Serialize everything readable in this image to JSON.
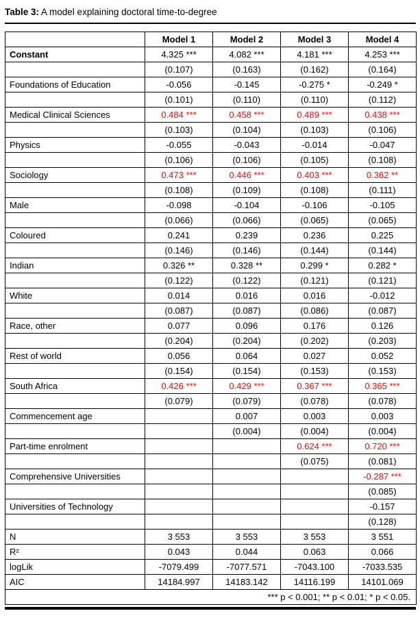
{
  "title": {
    "label": "Table 3:",
    "text": "A model explaining doctoral time-to-degree"
  },
  "colors": {
    "significant": "#ff0000",
    "text": "#000000",
    "border": "#000000"
  },
  "table": {
    "columns": [
      "",
      "Model 1",
      "Model 2",
      "Model 3",
      "Model 4"
    ],
    "variables": [
      {
        "label": "Constant",
        "bold": true,
        "coef": [
          "4.325 ***",
          "4.082 ***",
          "4.181 ***",
          "4.253 ***"
        ],
        "se": [
          "(0.107)",
          "(0.163)",
          "(0.162)",
          "(0.164)"
        ],
        "red": [
          false,
          false,
          false,
          false
        ]
      },
      {
        "label": "Foundations of Education",
        "bold": false,
        "coef": [
          "-0.056",
          "-0.145",
          "-0.275 *",
          "-0.249 *"
        ],
        "se": [
          "(0.101)",
          "(0.110)",
          "(0.110)",
          "(0.112)"
        ],
        "red": [
          false,
          false,
          false,
          false
        ]
      },
      {
        "label": "Medical Clinical Sciences",
        "bold": false,
        "coef": [
          "0.484 ***",
          "0.458 ***",
          "0.489 ***",
          "0.438 ***"
        ],
        "se": [
          "(0.103)",
          "(0.104)",
          "(0.103)",
          "(0.106)"
        ],
        "red": [
          true,
          true,
          true,
          true
        ]
      },
      {
        "label": "Physics",
        "bold": false,
        "coef": [
          "-0.055",
          "-0.043",
          "-0.014",
          "-0.047"
        ],
        "se": [
          "(0.106)",
          "(0.106)",
          "(0.105)",
          "(0.108)"
        ],
        "red": [
          false,
          false,
          false,
          false
        ]
      },
      {
        "label": "Sociology",
        "bold": false,
        "coef": [
          "0.473 ***",
          "0.446 ***",
          "0.403 ***",
          "0.362 **"
        ],
        "se": [
          "(0.108)",
          "(0.109)",
          "(0.108)",
          "(0.111)"
        ],
        "red": [
          true,
          true,
          true,
          true
        ]
      },
      {
        "label": "Male",
        "bold": false,
        "coef": [
          "-0.098",
          "-0.104",
          "-0.106",
          "-0.105"
        ],
        "se": [
          "(0.066)",
          "(0.066)",
          "(0.065)",
          "(0.065)"
        ],
        "red": [
          false,
          false,
          false,
          false
        ]
      },
      {
        "label": "Coloured",
        "bold": false,
        "coef": [
          "0.241",
          "0.239",
          "0.236",
          "0.225"
        ],
        "se": [
          "(0.146)",
          "(0.146)",
          "(0.144)",
          "(0.144)"
        ],
        "red": [
          false,
          false,
          false,
          false
        ]
      },
      {
        "label": "Indian",
        "bold": false,
        "coef": [
          "0.326 **",
          "0.328 **",
          "0.299 *",
          "0.282 *"
        ],
        "se": [
          "(0.122)",
          "(0.122)",
          "(0.121)",
          "(0.121)"
        ],
        "red": [
          false,
          false,
          false,
          false
        ]
      },
      {
        "label": "White",
        "bold": false,
        "coef": [
          "0.014",
          "0.016",
          "0.016",
          "-0.012"
        ],
        "se": [
          "(0.087)",
          "(0.087)",
          "(0.086)",
          "(0.087)"
        ],
        "red": [
          false,
          false,
          false,
          false
        ]
      },
      {
        "label": "Race, other",
        "bold": false,
        "coef": [
          "0.077",
          "0.096",
          "0.176",
          "0.126"
        ],
        "se": [
          "(0.204)",
          "(0.204)",
          "(0.202)",
          "(0.203)"
        ],
        "red": [
          false,
          false,
          false,
          false
        ]
      },
      {
        "label": "Rest of world",
        "bold": false,
        "coef": [
          "0.056",
          "0.064",
          "0.027",
          "0.052"
        ],
        "se": [
          "(0.154)",
          "(0.154)",
          "(0.153)",
          "(0.153)"
        ],
        "red": [
          false,
          false,
          false,
          false
        ]
      },
      {
        "label": "South Africa",
        "bold": false,
        "coef": [
          "0.426 ***",
          "0.429 ***",
          "0.367 ***",
          "0.365 ***"
        ],
        "se": [
          "(0.079)",
          "(0.079)",
          "(0.078)",
          "(0.078)"
        ],
        "red": [
          true,
          true,
          true,
          true
        ]
      },
      {
        "label": "Commencement age",
        "bold": false,
        "coef": [
          "",
          "0.007",
          "0.003",
          "0.003"
        ],
        "se": [
          "",
          "(0.004)",
          "(0.004)",
          "(0.004)"
        ],
        "red": [
          false,
          false,
          false,
          false
        ]
      },
      {
        "label": "Part-time enrolment",
        "bold": false,
        "coef": [
          "",
          "",
          "0.624 ***",
          "0.720 ***"
        ],
        "se": [
          "",
          "",
          "(0.075)",
          "(0.081)"
        ],
        "red": [
          false,
          false,
          true,
          true
        ]
      },
      {
        "label": "Comprehensive Universities",
        "bold": false,
        "coef": [
          "",
          "",
          "",
          "-0.287 ***"
        ],
        "se": [
          "",
          "",
          "",
          "(0.085)"
        ],
        "red": [
          false,
          false,
          false,
          true
        ]
      },
      {
        "label": "Universities of Technology",
        "bold": false,
        "coef": [
          "",
          "",
          "",
          "-0.157"
        ],
        "se": [
          "",
          "",
          "",
          "(0.128)"
        ],
        "red": [
          false,
          false,
          false,
          false
        ]
      }
    ],
    "stats": [
      {
        "label": "N",
        "values": [
          "3 553",
          "3 553",
          "3 553",
          "3 551"
        ]
      },
      {
        "label": "R²",
        "values": [
          "0.043",
          "0.044",
          "0.063",
          "0.066"
        ]
      },
      {
        "label": "logLik",
        "values": [
          "-7079.499",
          "-7077.571",
          "-7043.100",
          "-7033.535"
        ]
      },
      {
        "label": "AIC",
        "values": [
          "14184.997",
          "14183.142",
          "14116.199",
          "14101.069"
        ]
      }
    ],
    "footnote": "*** p < 0.001; ** p < 0.01; * p < 0.05."
  }
}
